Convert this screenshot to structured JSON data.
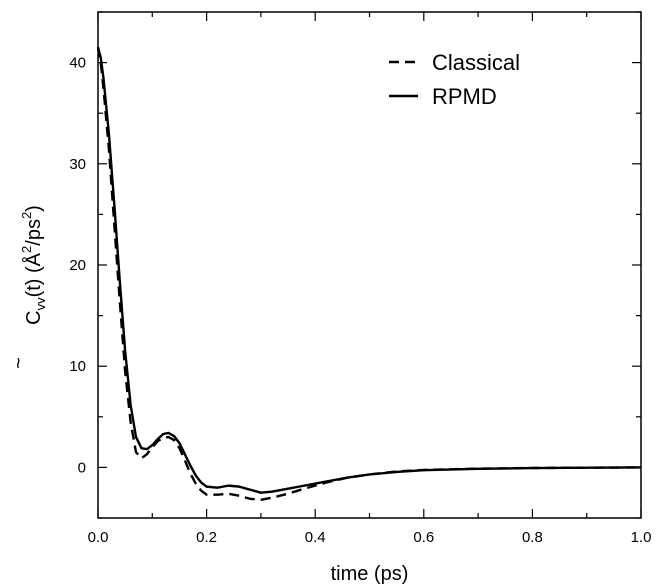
{
  "chart_data": {
    "type": "line",
    "xlabel": "time (ps)",
    "ylabel": {
      "main": "C",
      "accent": "~",
      "sub": "vv",
      "args": "(t) (",
      "angstrom": "Å",
      "sup1": "2",
      "mid": "/ps",
      "sup2": "2",
      "close": ")"
    },
    "xlim": [
      0.0,
      1.0
    ],
    "ylim": [
      -5,
      45
    ],
    "x_ticks": [
      0.0,
      0.2,
      0.4,
      0.6,
      0.8,
      1.0
    ],
    "x_tick_labels": [
      "0.0",
      "0.2",
      "0.4",
      "0.6",
      "0.8",
      "1.0"
    ],
    "y_ticks": [
      0,
      10,
      20,
      30,
      40
    ],
    "y_tick_labels": [
      "0",
      "10",
      "20",
      "30",
      "40"
    ],
    "grid": false,
    "legend_position": "top-right",
    "series": [
      {
        "name": "Classical",
        "style": "dashed",
        "color": "#000000",
        "points": [
          [
            0.0,
            41.5
          ],
          [
            0.005,
            40.0
          ],
          [
            0.01,
            37.5
          ],
          [
            0.02,
            31.5
          ],
          [
            0.03,
            24.0
          ],
          [
            0.04,
            16.5
          ],
          [
            0.05,
            9.5
          ],
          [
            0.06,
            4.5
          ],
          [
            0.07,
            1.5
          ],
          [
            0.08,
            0.9
          ],
          [
            0.09,
            1.3
          ],
          [
            0.1,
            2.0
          ],
          [
            0.11,
            2.6
          ],
          [
            0.12,
            2.9
          ],
          [
            0.13,
            3.0
          ],
          [
            0.14,
            2.7
          ],
          [
            0.15,
            1.9
          ],
          [
            0.16,
            0.7
          ],
          [
            0.17,
            -0.6
          ],
          [
            0.18,
            -1.6
          ],
          [
            0.19,
            -2.3
          ],
          [
            0.2,
            -2.7
          ],
          [
            0.22,
            -2.7
          ],
          [
            0.24,
            -2.6
          ],
          [
            0.26,
            -2.8
          ],
          [
            0.28,
            -3.1
          ],
          [
            0.3,
            -3.2
          ],
          [
            0.32,
            -3.0
          ],
          [
            0.35,
            -2.6
          ],
          [
            0.38,
            -2.1
          ],
          [
            0.42,
            -1.5
          ],
          [
            0.46,
            -1.0
          ],
          [
            0.5,
            -0.7
          ],
          [
            0.55,
            -0.4
          ],
          [
            0.6,
            -0.25
          ],
          [
            0.7,
            -0.12
          ],
          [
            0.8,
            -0.06
          ],
          [
            0.9,
            -0.03
          ],
          [
            1.0,
            0.0
          ]
        ]
      },
      {
        "name": "RPMD",
        "style": "solid",
        "color": "#000000",
        "points": [
          [
            0.0,
            41.5
          ],
          [
            0.005,
            40.5
          ],
          [
            0.01,
            38.5
          ],
          [
            0.02,
            33.0
          ],
          [
            0.03,
            26.0
          ],
          [
            0.04,
            18.5
          ],
          [
            0.05,
            11.5
          ],
          [
            0.06,
            6.2
          ],
          [
            0.07,
            3.0
          ],
          [
            0.08,
            1.9
          ],
          [
            0.09,
            1.8
          ],
          [
            0.1,
            2.2
          ],
          [
            0.11,
            2.8
          ],
          [
            0.12,
            3.3
          ],
          [
            0.13,
            3.4
          ],
          [
            0.14,
            3.1
          ],
          [
            0.15,
            2.4
          ],
          [
            0.16,
            1.3
          ],
          [
            0.17,
            0.2
          ],
          [
            0.18,
            -0.8
          ],
          [
            0.19,
            -1.5
          ],
          [
            0.2,
            -1.9
          ],
          [
            0.22,
            -2.0
          ],
          [
            0.24,
            -1.8
          ],
          [
            0.26,
            -1.9
          ],
          [
            0.28,
            -2.2
          ],
          [
            0.3,
            -2.5
          ],
          [
            0.32,
            -2.4
          ],
          [
            0.35,
            -2.1
          ],
          [
            0.38,
            -1.8
          ],
          [
            0.42,
            -1.4
          ],
          [
            0.46,
            -1.0
          ],
          [
            0.5,
            -0.7
          ],
          [
            0.55,
            -0.45
          ],
          [
            0.6,
            -0.28
          ],
          [
            0.7,
            -0.14
          ],
          [
            0.8,
            -0.07
          ],
          [
            0.9,
            -0.03
          ],
          [
            1.0,
            0.0
          ]
        ]
      }
    ]
  }
}
